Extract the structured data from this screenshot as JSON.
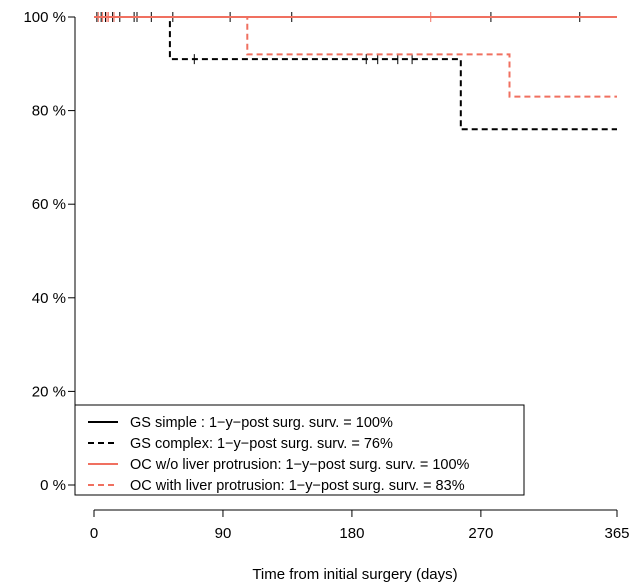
{
  "chart_data": {
    "type": "line",
    "subtype": "kaplan-meier survival curves",
    "xlabel": "Time from initial surgery (days)",
    "ylabel": "",
    "xlim": [
      0,
      365
    ],
    "ylim": [
      0,
      100
    ],
    "x_ticks": [
      0,
      90,
      180,
      270,
      365
    ],
    "x_tick_labels": [
      "0",
      "90",
      "180",
      "270",
      "365"
    ],
    "y_ticks": [
      0,
      20,
      40,
      60,
      80,
      100
    ],
    "y_tick_labels": [
      "0 %",
      "20 %",
      "40 %",
      "60 %",
      "80 %",
      "100 %"
    ],
    "grid": false,
    "legend_position": "bottom-left",
    "colors": {
      "black": "#000000",
      "salmon": "#f07060"
    },
    "series": [
      {
        "name": "GS simple : 1−y−post surg. surv. = 100%",
        "color": "#000000",
        "dash": "solid",
        "steps": [
          [
            0,
            100
          ],
          [
            365,
            100
          ]
        ],
        "censored": [
          [
            2,
            100
          ],
          [
            5,
            100
          ],
          [
            8,
            100
          ],
          [
            13,
            100
          ],
          [
            18,
            100
          ],
          [
            28,
            100
          ],
          [
            40,
            100
          ],
          [
            55,
            100
          ],
          [
            95,
            100
          ],
          [
            138,
            100
          ],
          [
            277,
            100
          ],
          [
            339,
            100
          ]
        ]
      },
      {
        "name": "GS complex: 1−y−post surg. surv. = 76%",
        "color": "#000000",
        "dash": "dashed",
        "steps": [
          [
            0,
            100
          ],
          [
            53,
            100
          ],
          [
            53,
            91
          ],
          [
            256,
            91
          ],
          [
            256,
            76
          ],
          [
            365,
            76
          ]
        ],
        "censored": [
          [
            30,
            100
          ],
          [
            70,
            91
          ],
          [
            190,
            91
          ],
          [
            198,
            91
          ],
          [
            212,
            91
          ],
          [
            222,
            91
          ]
        ]
      },
      {
        "name": "OC w/o liver protrusion: 1−y−post surg. surv. = 100%",
        "color": "#f07060",
        "dash": "solid",
        "steps": [
          [
            0,
            100
          ],
          [
            365,
            100
          ]
        ],
        "censored": [
          [
            3,
            100
          ],
          [
            9,
            100
          ],
          [
            235,
            100
          ]
        ]
      },
      {
        "name": "OC with liver protrusion: 1−y−post surg. surv. = 83%",
        "color": "#f07060",
        "dash": "dashed",
        "steps": [
          [
            0,
            100
          ],
          [
            107,
            100
          ],
          [
            107,
            92
          ],
          [
            290,
            92
          ],
          [
            290,
            83
          ],
          [
            365,
            83
          ]
        ],
        "censored": [
          [
            6,
            100
          ],
          [
            10,
            100
          ],
          [
            14,
            100
          ]
        ]
      }
    ]
  }
}
